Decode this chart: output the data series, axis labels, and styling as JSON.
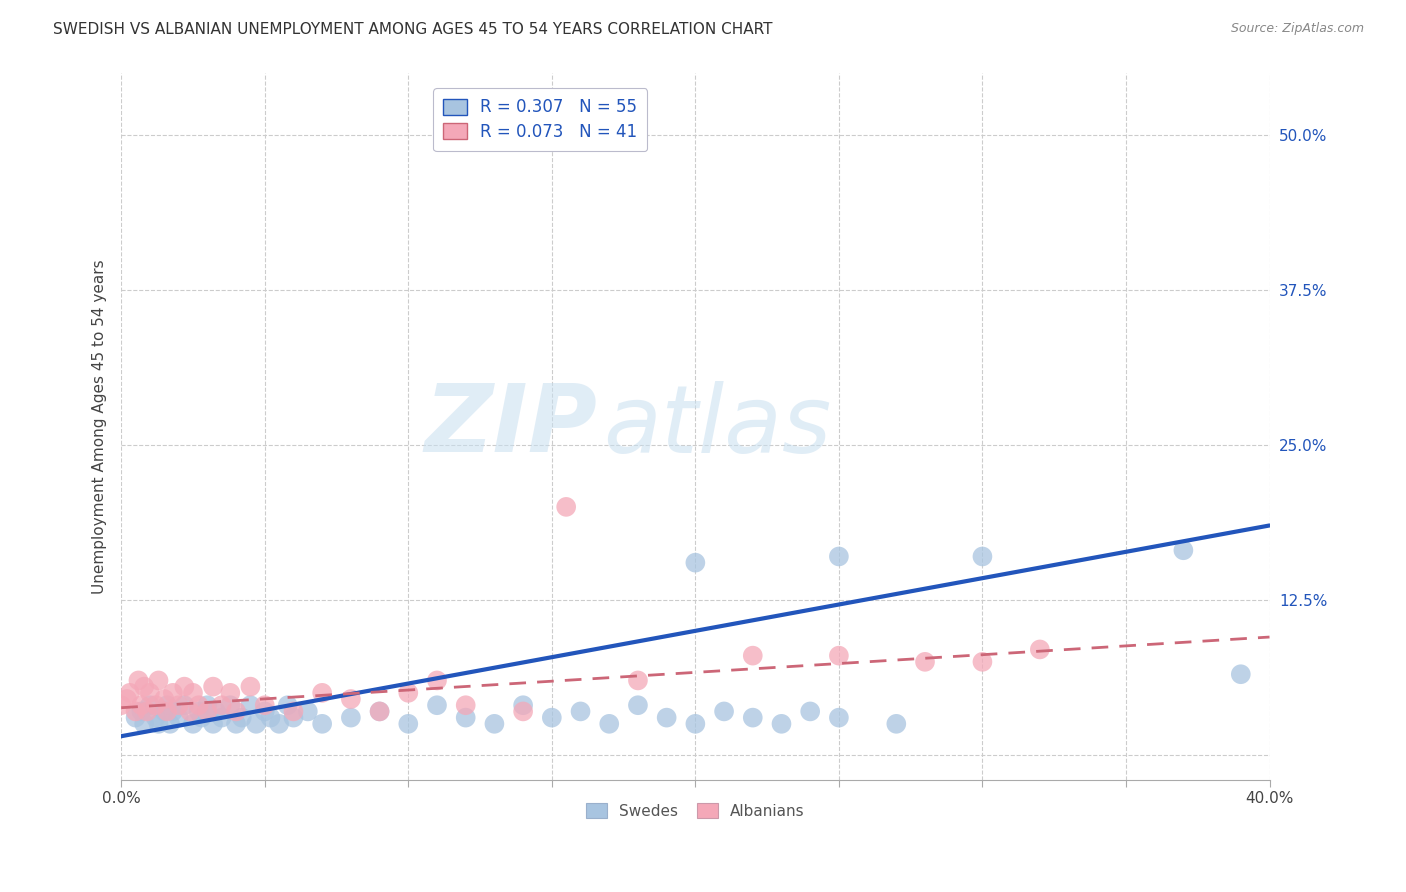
{
  "title": "SWEDISH VS ALBANIAN UNEMPLOYMENT AMONG AGES 45 TO 54 YEARS CORRELATION CHART",
  "source": "Source: ZipAtlas.com",
  "ylabel": "Unemployment Among Ages 45 to 54 years",
  "xlim": [
    0.0,
    0.4
  ],
  "ylim": [
    -0.02,
    0.55
  ],
  "x_ticks": [
    0.0,
    0.05,
    0.1,
    0.15,
    0.2,
    0.25,
    0.3,
    0.35,
    0.4
  ],
  "y_tick_positions": [
    0.0,
    0.125,
    0.25,
    0.375,
    0.5
  ],
  "y_tick_labels": [
    "",
    "12.5%",
    "25.0%",
    "37.5%",
    "50.0%"
  ],
  "grid_color": "#cccccc",
  "background_color": "#ffffff",
  "swedes_color": "#a8c4e0",
  "albanians_color": "#f4a8b8",
  "swedes_line_color": "#2255bb",
  "albanians_line_color": "#cc6677",
  "R_swedes": 0.307,
  "N_swedes": 55,
  "R_albanians": 0.073,
  "N_albanians": 41,
  "watermark_zip": "ZIP",
  "watermark_atlas": "atlas",
  "sw_line_x": [
    0.0,
    0.4
  ],
  "sw_line_y": [
    0.015,
    0.185
  ],
  "al_line_x": [
    0.0,
    0.4
  ],
  "al_line_y": [
    0.038,
    0.095
  ],
  "swedes_x": [
    0.005,
    0.007,
    0.008,
    0.01,
    0.012,
    0.013,
    0.015,
    0.016,
    0.017,
    0.018,
    0.02,
    0.022,
    0.025,
    0.027,
    0.028,
    0.03,
    0.032,
    0.033,
    0.035,
    0.038,
    0.04,
    0.042,
    0.045,
    0.047,
    0.05,
    0.052,
    0.055,
    0.058,
    0.06,
    0.065,
    0.07,
    0.08,
    0.09,
    0.1,
    0.11,
    0.12,
    0.13,
    0.14,
    0.15,
    0.16,
    0.17,
    0.18,
    0.19,
    0.2,
    0.21,
    0.22,
    0.23,
    0.24,
    0.25,
    0.27,
    0.2,
    0.25,
    0.3,
    0.37,
    0.39
  ],
  "swedes_y": [
    0.03,
    0.035,
    0.025,
    0.04,
    0.03,
    0.025,
    0.035,
    0.04,
    0.025,
    0.035,
    0.03,
    0.04,
    0.025,
    0.035,
    0.03,
    0.04,
    0.025,
    0.035,
    0.03,
    0.04,
    0.025,
    0.03,
    0.04,
    0.025,
    0.035,
    0.03,
    0.025,
    0.04,
    0.03,
    0.035,
    0.025,
    0.03,
    0.035,
    0.025,
    0.04,
    0.03,
    0.025,
    0.04,
    0.03,
    0.035,
    0.025,
    0.04,
    0.03,
    0.025,
    0.035,
    0.03,
    0.025,
    0.035,
    0.03,
    0.025,
    0.155,
    0.16,
    0.16,
    0.165,
    0.065
  ],
  "albanians_x": [
    0.0,
    0.002,
    0.003,
    0.005,
    0.006,
    0.007,
    0.008,
    0.009,
    0.01,
    0.012,
    0.013,
    0.015,
    0.016,
    0.018,
    0.02,
    0.022,
    0.024,
    0.025,
    0.027,
    0.03,
    0.032,
    0.035,
    0.038,
    0.04,
    0.045,
    0.05,
    0.06,
    0.07,
    0.08,
    0.09,
    0.1,
    0.11,
    0.12,
    0.14,
    0.155,
    0.18,
    0.22,
    0.25,
    0.28,
    0.3,
    0.32
  ],
  "albanians_y": [
    0.04,
    0.045,
    0.05,
    0.035,
    0.06,
    0.04,
    0.055,
    0.035,
    0.05,
    0.04,
    0.06,
    0.045,
    0.035,
    0.05,
    0.04,
    0.055,
    0.035,
    0.05,
    0.04,
    0.035,
    0.055,
    0.04,
    0.05,
    0.035,
    0.055,
    0.04,
    0.035,
    0.05,
    0.045,
    0.035,
    0.05,
    0.06,
    0.04,
    0.035,
    0.2,
    0.06,
    0.08,
    0.08,
    0.075,
    0.075,
    0.085
  ]
}
